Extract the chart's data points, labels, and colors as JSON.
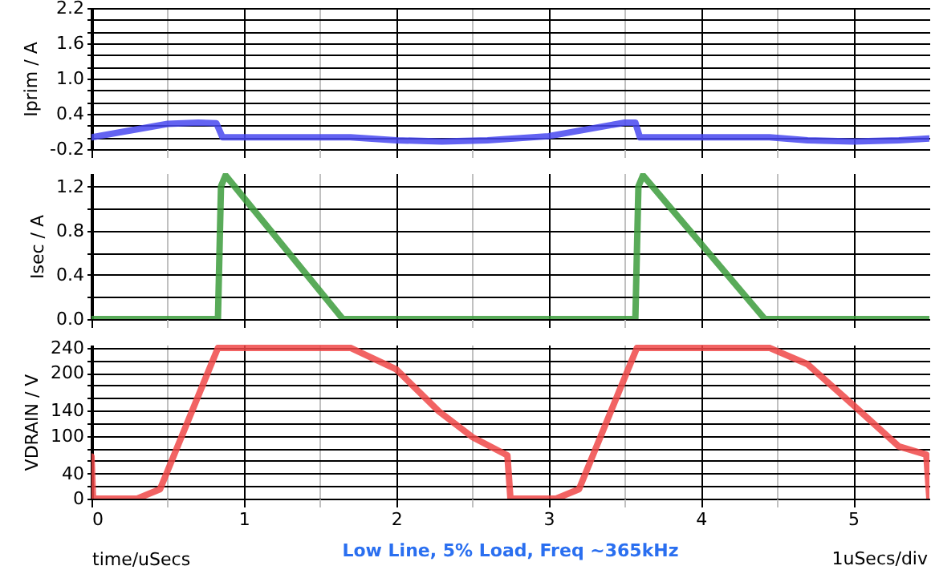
{
  "chart_data": [
    {
      "type": "line",
      "ylabel": "Iprim / A",
      "x": [
        0,
        0.5,
        0.7,
        0.82,
        0.86,
        1.7,
        2.0,
        2.3,
        2.6,
        3.0,
        3.5,
        3.57,
        3.6,
        4.45,
        4.7,
        5.0,
        5.3,
        5.5
      ],
      "series": [
        {
          "color": "#4848f0",
          "values": [
            0.0,
            0.23,
            0.25,
            0.24,
            0.0,
            0.0,
            -0.05,
            -0.07,
            -0.05,
            0.02,
            0.25,
            0.25,
            0.0,
            0.0,
            -0.05,
            -0.07,
            -0.05,
            -0.02
          ]
        }
      ],
      "xlim": [
        0,
        5.5
      ],
      "xticks": [
        0,
        {
          "value": 0.5,
          "label": null
        },
        1,
        {
          "value": 1.5,
          "label": null
        },
        2,
        {
          "value": 2.5,
          "label": null
        },
        3,
        {
          "value": 3.5,
          "label": null
        },
        4,
        {
          "value": 4.5,
          "label": null
        },
        5
      ],
      "ylim": [
        -0.2,
        2.2
      ],
      "yticks": [
        -0.2,
        {
          "value": 0,
          "label": null
        },
        {
          "value": 0.2,
          "label": null
        },
        0.4,
        {
          "value": 0.6,
          "label": null
        },
        {
          "value": 0.8,
          "label": null
        },
        {
          "value": 1,
          "label": "1.0"
        },
        {
          "value": 1.2,
          "label": null
        },
        {
          "value": 1.4,
          "label": null
        },
        1.6,
        {
          "value": 1.8,
          "label": null
        },
        {
          "value": 2,
          "label": null
        },
        2.2
      ],
      "grid": true,
      "tick_labels": "y",
      "marker": "none",
      "line_style": "solid"
    },
    {
      "type": "line",
      "ylabel": "Isec / A",
      "x": [
        0,
        0.83,
        0.85,
        0.88,
        1.65,
        3.57,
        3.59,
        3.62,
        4.42,
        5.5
      ],
      "series": [
        {
          "color": "#3c9c3c",
          "values": [
            0,
            0,
            1.2,
            1.3,
            0,
            0,
            1.2,
            1.3,
            0,
            0
          ]
        }
      ],
      "xlim": [
        0,
        5.5
      ],
      "xticks": [
        0,
        {
          "value": 0.5,
          "label": null
        },
        1,
        {
          "value": 1.5,
          "label": null
        },
        2,
        {
          "value": 2.5,
          "label": null
        },
        3,
        {
          "value": 3.5,
          "label": null
        },
        4,
        {
          "value": 4.5,
          "label": null
        },
        5
      ],
      "ylim": [
        0,
        1.32
      ],
      "yticks": [
        {
          "value": 0,
          "label": "0.0"
        },
        {
          "value": 0.2,
          "label": null
        },
        0.4,
        {
          "value": 0.6,
          "label": null
        },
        0.8,
        {
          "value": 1,
          "label": null
        },
        1.2
      ],
      "grid": true,
      "tick_labels": "y",
      "marker": "none",
      "line_style": "solid"
    },
    {
      "type": "line",
      "title": "Low Line, 5% Load, Freq ~365kHz",
      "xlabel": "time/uSecs",
      "ylabel": "VDRAIN / V",
      "annotations": [
        "1uSecs/div"
      ],
      "x": [
        0,
        0.01,
        0.3,
        0.45,
        0.83,
        1.7,
        2.0,
        2.28,
        2.5,
        2.73,
        2.75,
        3.05,
        3.2,
        3.58,
        4.45,
        4.7,
        5.0,
        5.3,
        5.48,
        5.5
      ],
      "series": [
        {
          "color": "#f04848",
          "values": [
            67,
            0,
            0,
            15,
            240,
            240,
            206,
            139,
            98,
            69,
            0,
            0,
            15,
            240,
            240,
            214,
            149,
            83,
            70,
            0
          ]
        }
      ],
      "xlim": [
        0,
        5.5
      ],
      "xticks": [
        0,
        {
          "value": 0.5,
          "label": null
        },
        1,
        {
          "value": 1.5,
          "label": null
        },
        2,
        {
          "value": 2.5,
          "label": null
        },
        3,
        {
          "value": 3.5,
          "label": null
        },
        4,
        {
          "value": 4.5,
          "label": null
        },
        5
      ],
      "ylim": [
        0,
        245
      ],
      "yticks": [
        0,
        {
          "value": 20,
          "label": null
        },
        40,
        {
          "value": 60,
          "label": null
        },
        {
          "value": 80,
          "label": null
        },
        100,
        {
          "value": 120,
          "label": null
        },
        140,
        {
          "value": 160,
          "label": null
        },
        {
          "value": 180,
          "label": null
        },
        200,
        {
          "value": 220,
          "label": null
        },
        240
      ],
      "grid": true,
      "marker": "none",
      "line_style": "solid"
    }
  ]
}
